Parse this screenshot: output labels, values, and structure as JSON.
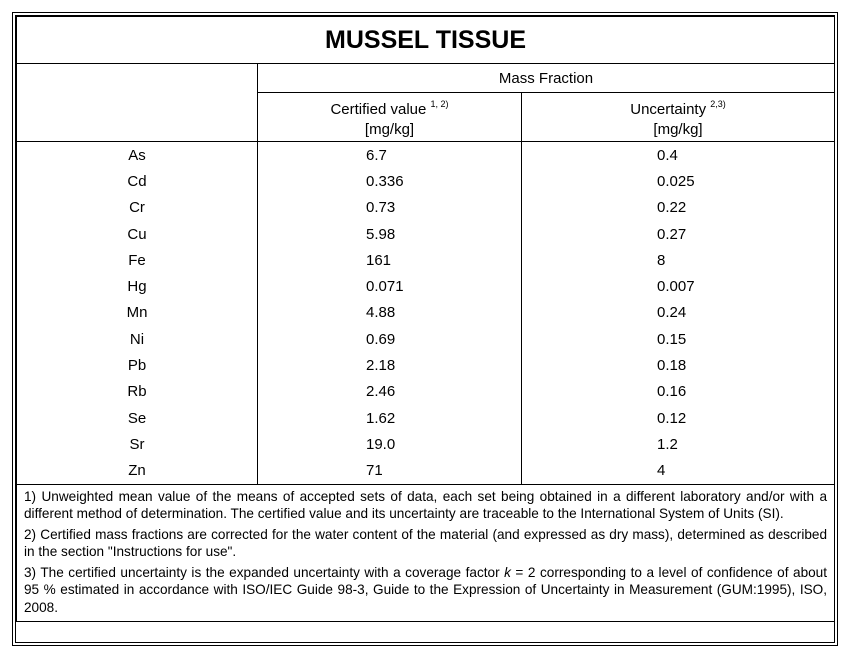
{
  "title": "MUSSEL TISSUE",
  "table": {
    "group_header": "Mass Fraction",
    "columns": [
      {
        "label": "Certified value",
        "note": "1, 2)",
        "unit": "[mg/kg]"
      },
      {
        "label": "Uncertainty",
        "note": "2,3)",
        "unit": "[mg/kg]"
      }
    ],
    "rows": [
      [
        "As",
        "6.7",
        "0.4"
      ],
      [
        "Cd",
        "0.336",
        "0.025"
      ],
      [
        "Cr",
        "0.73",
        "0.22"
      ],
      [
        "Cu",
        "5.98",
        "0.27"
      ],
      [
        "Fe",
        "161",
        "8"
      ],
      [
        "Hg",
        "0.071",
        "0.007"
      ],
      [
        "Mn",
        "4.88",
        "0.24"
      ],
      [
        "Ni",
        "0.69",
        "0.15"
      ],
      [
        "Pb",
        "2.18",
        "0.18"
      ],
      [
        "Rb",
        "2.46",
        "0.16"
      ],
      [
        "Se",
        "1.62",
        "0.12"
      ],
      [
        "Sr",
        "19.0",
        "1.2"
      ],
      [
        "Zn",
        "71",
        "4"
      ]
    ]
  },
  "footnotes": [
    [
      "1) Unweighted mean value of the means of accepted sets of data, each set being obtained in a different laboratory and/or with a different method of determination. The certified value and its uncertainty are traceable to the International System of Units (SI)."
    ],
    [
      "2) Certified mass fractions are corrected for the water content of the material (and expressed as dry mass), determined as described in the section \"Instructions for use\"."
    ],
    [
      "3) The certified uncertainty is the expanded uncertainty with a coverage factor ",
      "k",
      " = 2 corresponding to a level of confidence of about 95 % estimated in accordance with ISO/IEC Guide 98-3, Guide to the Expression of Uncertainty in Measurement (GUM:1995), ISO, 2008."
    ]
  ]
}
